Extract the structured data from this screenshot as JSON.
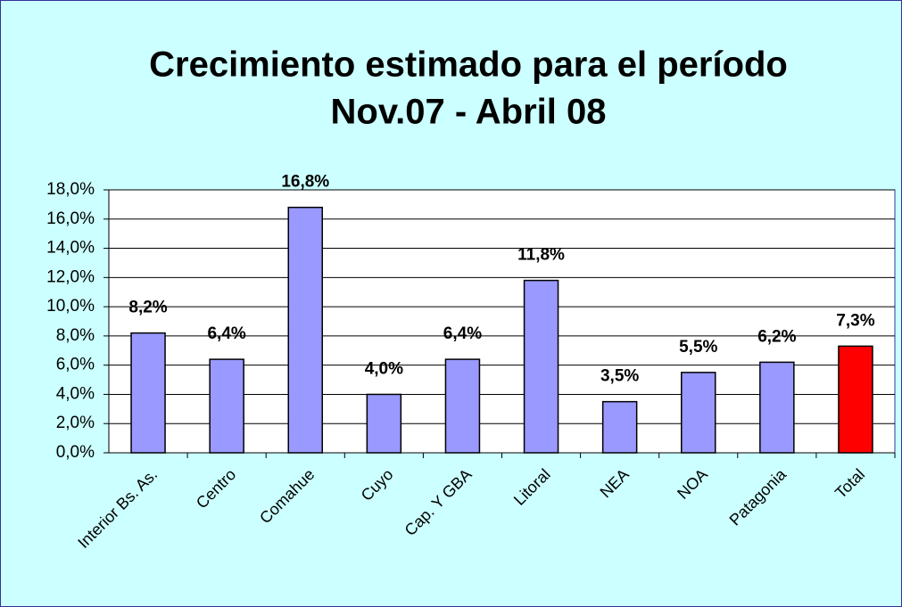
{
  "chart_data": {
    "type": "bar",
    "title": [
      "Crecimiento estimado para el período",
      "Nov.07 - Abril 08"
    ],
    "categories": [
      "Interior Bs. As.",
      "Centro",
      "Comahue",
      "Cuyo",
      "Cap. Y GBA",
      "Litoral",
      "NEA",
      "NOA",
      "Patagonia",
      "Total"
    ],
    "values": [
      8.2,
      6.4,
      16.8,
      4.0,
      6.4,
      11.8,
      3.5,
      5.5,
      6.2,
      7.3
    ],
    "value_labels": [
      "8,2%",
      "6,4%",
      "16,8%",
      "4,0%",
      "6,4%",
      "11,8%",
      "3,5%",
      "5,5%",
      "6,2%",
      "7,3%"
    ],
    "colors": [
      "#9999ff",
      "#9999ff",
      "#9999ff",
      "#9999ff",
      "#9999ff",
      "#9999ff",
      "#9999ff",
      "#9999ff",
      "#9999ff",
      "#ff0000"
    ],
    "ylim": [
      0,
      18
    ],
    "yticks": [
      {
        "value": 0,
        "label": "0,0%"
      },
      {
        "value": 2,
        "label": "2,0%"
      },
      {
        "value": 4,
        "label": "4,0%"
      },
      {
        "value": 6,
        "label": "6,0%"
      },
      {
        "value": 8,
        "label": "8,0%"
      },
      {
        "value": 10,
        "label": "10,0%"
      },
      {
        "value": 12,
        "label": "12,0%"
      },
      {
        "value": 14,
        "label": "14,0%"
      },
      {
        "value": 16,
        "label": "16,0%"
      },
      {
        "value": 18,
        "label": "18,0%"
      }
    ],
    "grid": true
  }
}
